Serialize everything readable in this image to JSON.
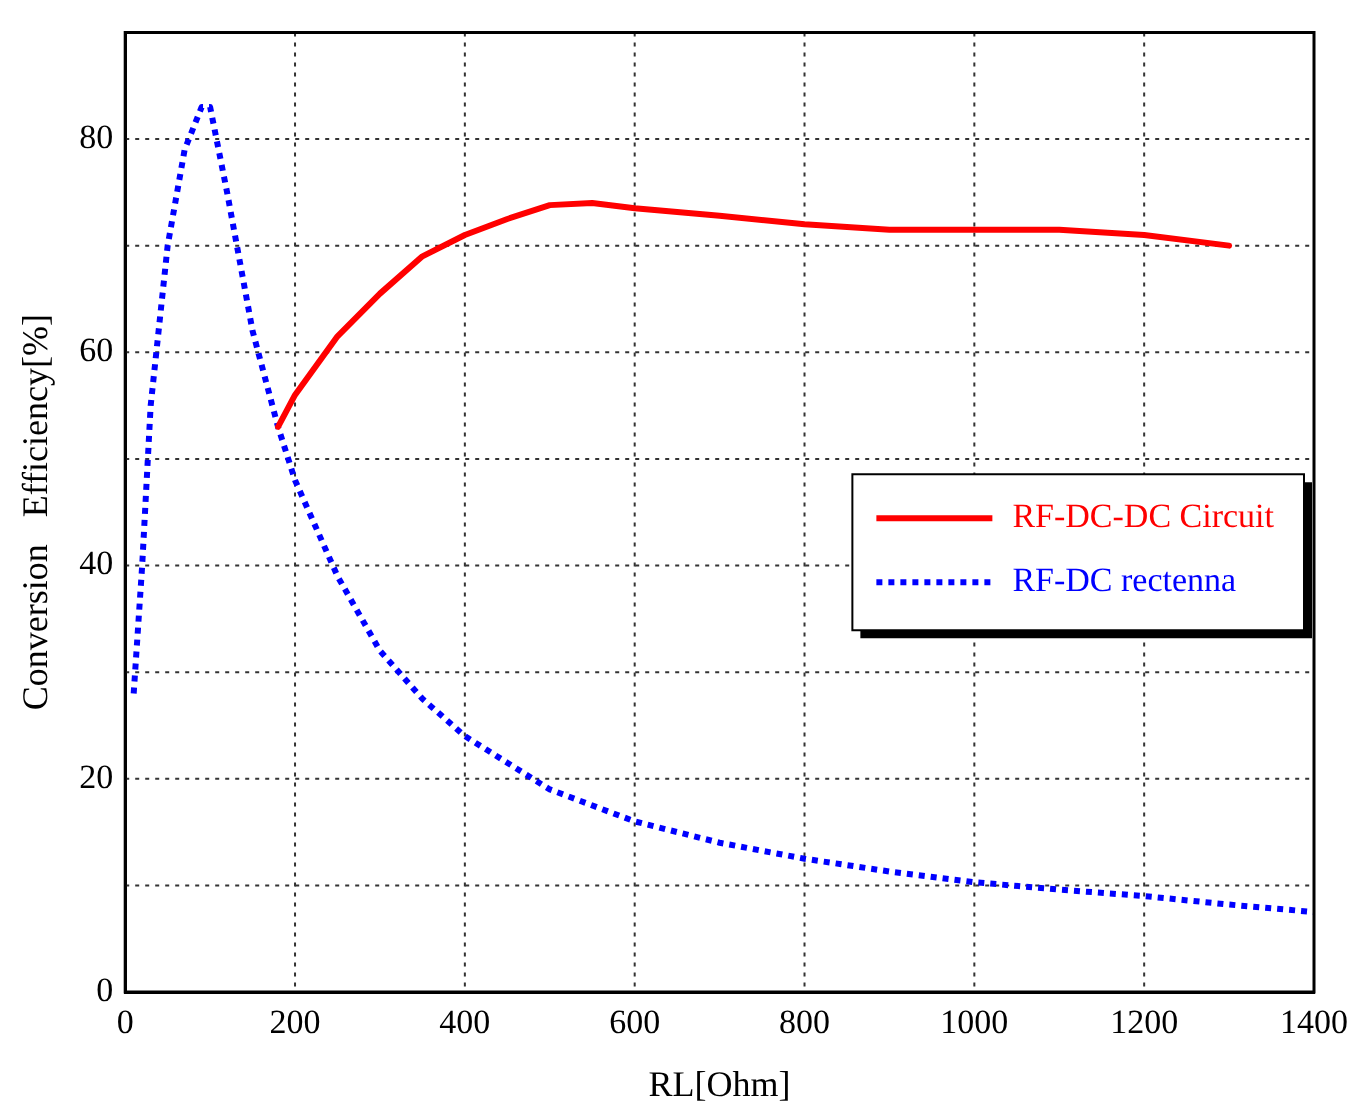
{
  "chart_data": {
    "type": "line",
    "xlabel": "RL[Ohm]",
    "ylabel": "Conversion   Efficiency[%]",
    "xlim": [
      0,
      1400
    ],
    "xticks": [
      0,
      200,
      400,
      600,
      800,
      1000,
      1200,
      1400
    ],
    "ylim": [
      0,
      90
    ],
    "yticks": [
      0,
      {
        "value": 10,
        "label": null
      },
      20,
      {
        "value": 30,
        "label": null
      },
      40,
      {
        "value": 50,
        "label": null
      },
      60,
      {
        "value": 70,
        "label": null
      },
      80,
      {
        "value": 90,
        "label": null
      }
    ],
    "grid": true,
    "legend": "right",
    "marker": "none",
    "series": [
      {
        "name": "RF-DC-DC Circuit",
        "color": "#ff0000",
        "line_style": "solid",
        "x": [
          180,
          200,
          250,
          300,
          350,
          400,
          450,
          500,
          550,
          600,
          700,
          800,
          900,
          1000,
          1100,
          1200,
          1300
        ],
        "values": [
          53,
          56,
          61.5,
          65.5,
          69,
          71,
          72.5,
          73.8,
          74,
          73.5,
          72.8,
          72,
          71.5,
          71.5,
          71.5,
          71,
          70
        ]
      },
      {
        "name": "RF-DC rectenna",
        "color": "#0000ff",
        "line_style": "dotted",
        "x": [
          10,
          20,
          30,
          50,
          70,
          90,
          100,
          120,
          150,
          180,
          200,
          250,
          300,
          350,
          400,
          500,
          600,
          700,
          800,
          900,
          1000,
          1100,
          1200,
          1300,
          1400
        ],
        "values": [
          28,
          40,
          55,
          70,
          79,
          83,
          83,
          75,
          62,
          53,
          48,
          39,
          32,
          27.5,
          24,
          19,
          16,
          14,
          12.5,
          11.3,
          10.3,
          9.6,
          9,
          8.2,
          7.5
        ]
      }
    ]
  }
}
